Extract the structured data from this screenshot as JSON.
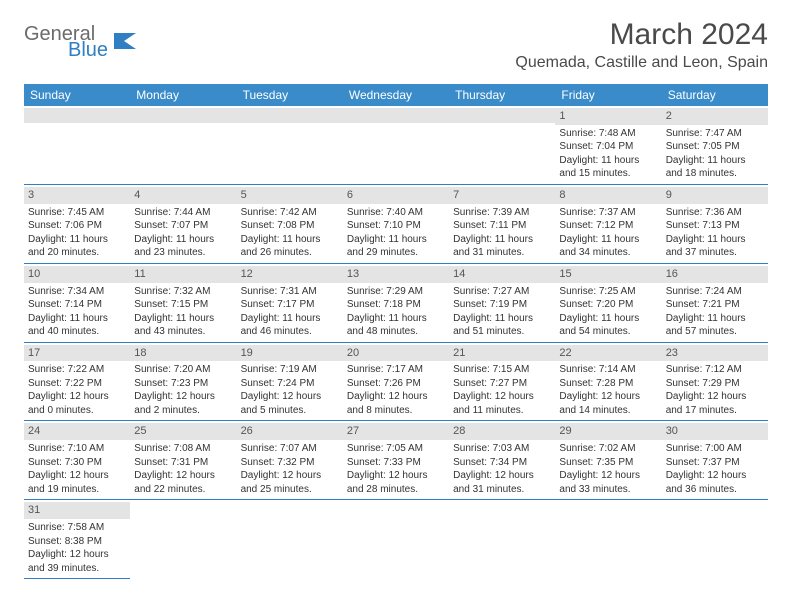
{
  "brand": {
    "line1": "General",
    "line2": "Blue"
  },
  "title": "March 2024",
  "location": "Quemada, Castille and Leon, Spain",
  "colors": {
    "header_bg": "#3a8bc9",
    "header_text": "#ffffff",
    "rule": "#2f7fc2",
    "daynum_bg": "#e4e4e4",
    "body_text": "#333333",
    "brand_gray": "#6b6b6b",
    "brand_blue": "#2f7fc2"
  },
  "weekdays": [
    "Sunday",
    "Monday",
    "Tuesday",
    "Wednesday",
    "Thursday",
    "Friday",
    "Saturday"
  ],
  "weeks": [
    [
      null,
      null,
      null,
      null,
      null,
      {
        "n": "1",
        "sr": "Sunrise: 7:48 AM",
        "ss": "Sunset: 7:04 PM",
        "dl1": "Daylight: 11 hours",
        "dl2": "and 15 minutes."
      },
      {
        "n": "2",
        "sr": "Sunrise: 7:47 AM",
        "ss": "Sunset: 7:05 PM",
        "dl1": "Daylight: 11 hours",
        "dl2": "and 18 minutes."
      }
    ],
    [
      {
        "n": "3",
        "sr": "Sunrise: 7:45 AM",
        "ss": "Sunset: 7:06 PM",
        "dl1": "Daylight: 11 hours",
        "dl2": "and 20 minutes."
      },
      {
        "n": "4",
        "sr": "Sunrise: 7:44 AM",
        "ss": "Sunset: 7:07 PM",
        "dl1": "Daylight: 11 hours",
        "dl2": "and 23 minutes."
      },
      {
        "n": "5",
        "sr": "Sunrise: 7:42 AM",
        "ss": "Sunset: 7:08 PM",
        "dl1": "Daylight: 11 hours",
        "dl2": "and 26 minutes."
      },
      {
        "n": "6",
        "sr": "Sunrise: 7:40 AM",
        "ss": "Sunset: 7:10 PM",
        "dl1": "Daylight: 11 hours",
        "dl2": "and 29 minutes."
      },
      {
        "n": "7",
        "sr": "Sunrise: 7:39 AM",
        "ss": "Sunset: 7:11 PM",
        "dl1": "Daylight: 11 hours",
        "dl2": "and 31 minutes."
      },
      {
        "n": "8",
        "sr": "Sunrise: 7:37 AM",
        "ss": "Sunset: 7:12 PM",
        "dl1": "Daylight: 11 hours",
        "dl2": "and 34 minutes."
      },
      {
        "n": "9",
        "sr": "Sunrise: 7:36 AM",
        "ss": "Sunset: 7:13 PM",
        "dl1": "Daylight: 11 hours",
        "dl2": "and 37 minutes."
      }
    ],
    [
      {
        "n": "10",
        "sr": "Sunrise: 7:34 AM",
        "ss": "Sunset: 7:14 PM",
        "dl1": "Daylight: 11 hours",
        "dl2": "and 40 minutes."
      },
      {
        "n": "11",
        "sr": "Sunrise: 7:32 AM",
        "ss": "Sunset: 7:15 PM",
        "dl1": "Daylight: 11 hours",
        "dl2": "and 43 minutes."
      },
      {
        "n": "12",
        "sr": "Sunrise: 7:31 AM",
        "ss": "Sunset: 7:17 PM",
        "dl1": "Daylight: 11 hours",
        "dl2": "and 46 minutes."
      },
      {
        "n": "13",
        "sr": "Sunrise: 7:29 AM",
        "ss": "Sunset: 7:18 PM",
        "dl1": "Daylight: 11 hours",
        "dl2": "and 48 minutes."
      },
      {
        "n": "14",
        "sr": "Sunrise: 7:27 AM",
        "ss": "Sunset: 7:19 PM",
        "dl1": "Daylight: 11 hours",
        "dl2": "and 51 minutes."
      },
      {
        "n": "15",
        "sr": "Sunrise: 7:25 AM",
        "ss": "Sunset: 7:20 PM",
        "dl1": "Daylight: 11 hours",
        "dl2": "and 54 minutes."
      },
      {
        "n": "16",
        "sr": "Sunrise: 7:24 AM",
        "ss": "Sunset: 7:21 PM",
        "dl1": "Daylight: 11 hours",
        "dl2": "and 57 minutes."
      }
    ],
    [
      {
        "n": "17",
        "sr": "Sunrise: 7:22 AM",
        "ss": "Sunset: 7:22 PM",
        "dl1": "Daylight: 12 hours",
        "dl2": "and 0 minutes."
      },
      {
        "n": "18",
        "sr": "Sunrise: 7:20 AM",
        "ss": "Sunset: 7:23 PM",
        "dl1": "Daylight: 12 hours",
        "dl2": "and 2 minutes."
      },
      {
        "n": "19",
        "sr": "Sunrise: 7:19 AM",
        "ss": "Sunset: 7:24 PM",
        "dl1": "Daylight: 12 hours",
        "dl2": "and 5 minutes."
      },
      {
        "n": "20",
        "sr": "Sunrise: 7:17 AM",
        "ss": "Sunset: 7:26 PM",
        "dl1": "Daylight: 12 hours",
        "dl2": "and 8 minutes."
      },
      {
        "n": "21",
        "sr": "Sunrise: 7:15 AM",
        "ss": "Sunset: 7:27 PM",
        "dl1": "Daylight: 12 hours",
        "dl2": "and 11 minutes."
      },
      {
        "n": "22",
        "sr": "Sunrise: 7:14 AM",
        "ss": "Sunset: 7:28 PM",
        "dl1": "Daylight: 12 hours",
        "dl2": "and 14 minutes."
      },
      {
        "n": "23",
        "sr": "Sunrise: 7:12 AM",
        "ss": "Sunset: 7:29 PM",
        "dl1": "Daylight: 12 hours",
        "dl2": "and 17 minutes."
      }
    ],
    [
      {
        "n": "24",
        "sr": "Sunrise: 7:10 AM",
        "ss": "Sunset: 7:30 PM",
        "dl1": "Daylight: 12 hours",
        "dl2": "and 19 minutes."
      },
      {
        "n": "25",
        "sr": "Sunrise: 7:08 AM",
        "ss": "Sunset: 7:31 PM",
        "dl1": "Daylight: 12 hours",
        "dl2": "and 22 minutes."
      },
      {
        "n": "26",
        "sr": "Sunrise: 7:07 AM",
        "ss": "Sunset: 7:32 PM",
        "dl1": "Daylight: 12 hours",
        "dl2": "and 25 minutes."
      },
      {
        "n": "27",
        "sr": "Sunrise: 7:05 AM",
        "ss": "Sunset: 7:33 PM",
        "dl1": "Daylight: 12 hours",
        "dl2": "and 28 minutes."
      },
      {
        "n": "28",
        "sr": "Sunrise: 7:03 AM",
        "ss": "Sunset: 7:34 PM",
        "dl1": "Daylight: 12 hours",
        "dl2": "and 31 minutes."
      },
      {
        "n": "29",
        "sr": "Sunrise: 7:02 AM",
        "ss": "Sunset: 7:35 PM",
        "dl1": "Daylight: 12 hours",
        "dl2": "and 33 minutes."
      },
      {
        "n": "30",
        "sr": "Sunrise: 7:00 AM",
        "ss": "Sunset: 7:37 PM",
        "dl1": "Daylight: 12 hours",
        "dl2": "and 36 minutes."
      }
    ],
    [
      {
        "n": "31",
        "sr": "Sunrise: 7:58 AM",
        "ss": "Sunset: 8:38 PM",
        "dl1": "Daylight: 12 hours",
        "dl2": "and 39 minutes."
      },
      null,
      null,
      null,
      null,
      null,
      null
    ]
  ]
}
